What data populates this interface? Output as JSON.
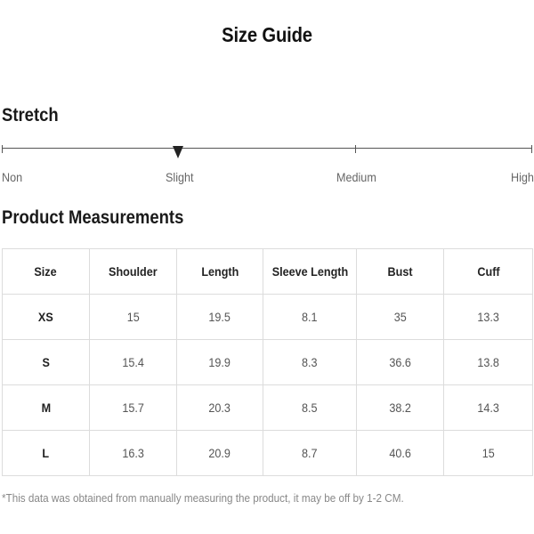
{
  "title": "Size Guide",
  "stretch": {
    "heading": "Stretch",
    "labels": [
      "Non",
      "Slight",
      "Medium",
      "High"
    ],
    "selected": "Slight"
  },
  "measurements": {
    "heading": "Product Measurements",
    "columns": [
      "Size",
      "Shoulder",
      "Length",
      "Sleeve Length",
      "Bust",
      "Cuff"
    ],
    "rows": [
      [
        "XS",
        "15",
        "19.5",
        "8.1",
        "35",
        "13.3"
      ],
      [
        "S",
        "15.4",
        "19.9",
        "8.3",
        "36.6",
        "13.8"
      ],
      [
        "M",
        "15.7",
        "20.3",
        "8.5",
        "38.2",
        "14.3"
      ],
      [
        "L",
        "16.3",
        "20.9",
        "8.7",
        "40.6",
        "15"
      ]
    ]
  },
  "footnote": "*This data was obtained from manually measuring the product, it may be off by 1-2 CM."
}
